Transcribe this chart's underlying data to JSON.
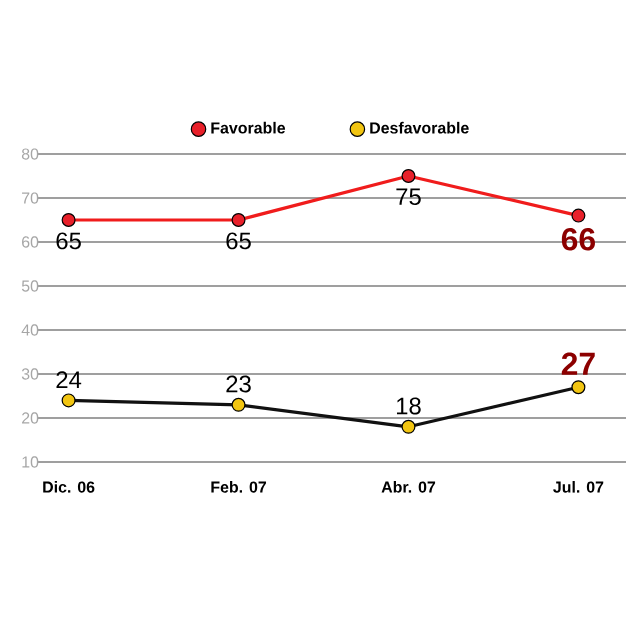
{
  "chart_data": {
    "type": "line",
    "categories": [
      "Dic. 06",
      "Feb. 07",
      "Abr. 07",
      "Jul. 07"
    ],
    "series": [
      {
        "name": "Favorable",
        "color": "#f01c1c",
        "colors": [
          "#e8202a",
          "#e8202a",
          "#e8202a",
          "#e8202a"
        ],
        "values": [
          65,
          65,
          75,
          66
        ]
      },
      {
        "name": "Desfavorable",
        "color": "#111111",
        "colors": [
          "#f2c511",
          "#f2c511",
          "#f2c511",
          "#f2c511"
        ],
        "values": [
          24,
          23,
          18,
          27
        ]
      }
    ],
    "ylim": [
      10,
      80
    ],
    "yticks": [
      10,
      20,
      30,
      40,
      50,
      60,
      70,
      80
    ],
    "grid": "y",
    "legend": "top",
    "marker": "circle",
    "line_style": "solid",
    "data_labels": true
  }
}
